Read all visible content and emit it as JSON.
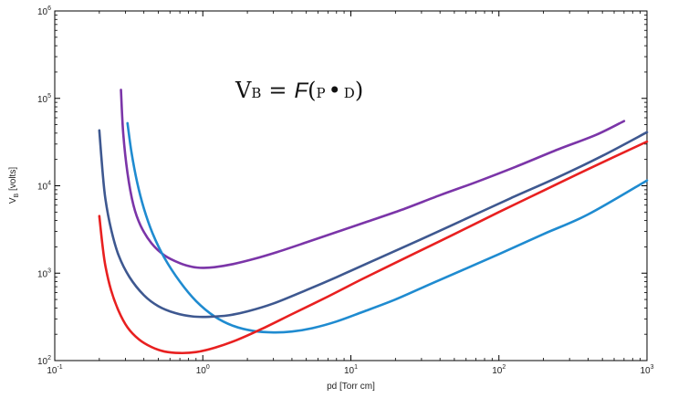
{
  "chart_data": {
    "type": "line",
    "title": "",
    "xlabel": "pd [Torr cm]",
    "ylabel": "V",
    "ylabel_sub": "B",
    "ylabel_units": " [volts]",
    "xscale": "log",
    "yscale": "log",
    "xlim": [
      0.1,
      1000
    ],
    "ylim": [
      100,
      1000000
    ],
    "grid": false,
    "legend": "none",
    "x_ticks": [
      {
        "base": "10",
        "exp": "-1"
      },
      {
        "base": "10",
        "exp": "0"
      },
      {
        "base": "10",
        "exp": "1"
      },
      {
        "base": "10",
        "exp": "2"
      },
      {
        "base": "10",
        "exp": "3"
      }
    ],
    "y_ticks": [
      {
        "base": "10",
        "exp": "2"
      },
      {
        "base": "10",
        "exp": "3"
      },
      {
        "base": "10",
        "exp": "4"
      },
      {
        "base": "10",
        "exp": "5"
      },
      {
        "base": "10",
        "exp": "6"
      }
    ],
    "annotation": {
      "lhs": "V",
      "lhs_sub": "B",
      "eq": "=",
      "func": "F",
      "open": "(",
      "arg1": "P",
      "dot": "•",
      "arg2": "D",
      "close": ")"
    },
    "series": [
      {
        "color": "#7b35a8",
        "x": [
          0.28,
          0.29,
          0.31,
          0.34,
          0.38,
          0.45,
          0.55,
          0.7,
          0.85,
          1.0,
          1.2,
          1.6,
          2.2,
          3.2,
          5,
          8,
          13,
          22,
          40,
          70,
          130,
          250,
          450,
          700
        ],
        "y": [
          125000,
          40000,
          14000,
          6000,
          3500,
          2200,
          1600,
          1300,
          1180,
          1150,
          1170,
          1270,
          1450,
          1750,
          2250,
          2950,
          3900,
          5300,
          7800,
          11000,
          16500,
          26000,
          38000,
          55000
        ]
      },
      {
        "color": "#1f8bd0",
        "x": [
          0.31,
          0.33,
          0.36,
          0.4,
          0.46,
          0.55,
          0.7,
          0.9,
          1.2,
          1.6,
          2.2,
          3.0,
          4.0,
          5.5,
          8,
          12,
          20,
          35,
          60,
          100,
          200,
          400,
          1000
        ],
        "y": [
          52000,
          24000,
          11000,
          5500,
          2800,
          1500,
          800,
          480,
          320,
          250,
          218,
          210,
          215,
          235,
          280,
          360,
          500,
          760,
          1130,
          1650,
          2800,
          4700,
          11500
        ]
      },
      {
        "color": "#3e5890",
        "x": [
          0.2,
          0.21,
          0.22,
          0.24,
          0.27,
          0.32,
          0.4,
          0.5,
          0.65,
          0.85,
          1.1,
          1.5,
          2.0,
          3.0,
          5,
          8,
          15,
          30,
          60,
          120,
          250,
          500,
          1000
        ],
        "y": [
          43000,
          15000,
          7000,
          3200,
          1600,
          900,
          560,
          420,
          350,
          320,
          317,
          330,
          365,
          450,
          640,
          900,
          1450,
          2450,
          4200,
          7200,
          12500,
          22000,
          41000
        ]
      },
      {
        "color": "#e82020",
        "x": [
          0.2,
          0.21,
          0.22,
          0.24,
          0.27,
          0.31,
          0.37,
          0.45,
          0.55,
          0.7,
          0.9,
          1.2,
          1.7,
          2.5,
          4,
          7,
          12,
          25,
          50,
          100,
          200,
          400,
          1000
        ],
        "y": [
          4500,
          2100,
          1200,
          640,
          370,
          240,
          175,
          143,
          127,
          122,
          125,
          140,
          172,
          230,
          340,
          540,
          860,
          1580,
          2800,
          5000,
          8800,
          15500,
          32000
        ]
      }
    ]
  }
}
